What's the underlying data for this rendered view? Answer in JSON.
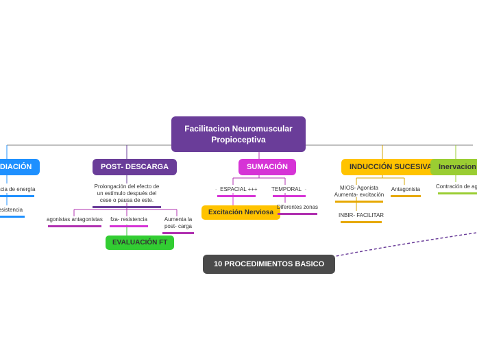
{
  "root": {
    "label": "Facilitacion Neuromuscular\nPropioceptiva",
    "bg": "#6a3d99",
    "fg": "#ffffff"
  },
  "branches": {
    "radiacion": {
      "label": "RADIACIÓN",
      "bg": "#1e90ff",
      "line": "#1e90ff"
    },
    "post": {
      "label": "POST- DESCARGA",
      "bg": "#6a3d99",
      "line": "#6a3d99"
    },
    "sumacion": {
      "label": "SUMACIÓN",
      "bg": "#d633d6",
      "line": "#b030b0"
    },
    "induccion": {
      "label": "INDUCCIÓN SUCESIVA",
      "bg": "#ffc300",
      "line": "#d4a500",
      "fg": "#333333"
    },
    "inervacion": {
      "label": "Inervacion Reci",
      "bg": "#9acd32",
      "line": "#9acd32",
      "fg": "#333333"
    }
  },
  "sub": {
    "rad_energia": {
      "text": "aferencia de energía",
      "uline": "#1e90ff"
    },
    "rad_resist": {
      "text": "resistencia",
      "uline": "#1e90ff"
    },
    "post_desc": {
      "text": "Prolongación del efecto de\nun estímulo después del\ncese o pausa de este.",
      "uline": "#6a3d99"
    },
    "post_agon": {
      "text": "agonistas antagonistas",
      "uline": "#b030b0"
    },
    "post_fza": {
      "text": "fza- resistencia",
      "uline": "#d633d6"
    },
    "post_aumenta": {
      "text": "Aumenta la\npost- carga",
      "uline": "#b030b0"
    },
    "sum_espacial": {
      "text": "ESPACIAL +++",
      "uline": "#d633d6"
    },
    "sum_temporal": {
      "text": "TEMPORAL",
      "uline": "#d633d6"
    },
    "sum_zonas": {
      "text": "Diferentes zonas",
      "uline": "#b030b0"
    },
    "ind_mios": {
      "text": "MIOS- Agonista\nAumenta- excitación",
      "uline": "#e6a800"
    },
    "ind_antag": {
      "text": "Antagonista",
      "uline": "#e6a800"
    },
    "ind_inbir": {
      "text": "INBIR- FACILITAR",
      "uline": "#e6a800"
    },
    "iner_contra": {
      "text": "Contración de ago",
      "uline": "#9acd32"
    }
  },
  "pills": {
    "excitacion": {
      "text": "Excitación Nerviosa",
      "bg": "#ffc300",
      "fg": "#333333"
    },
    "evaluacion": {
      "text": "EVALUACIÓN FT",
      "bg": "#32cd32",
      "fg": "#333333"
    }
  },
  "proc": {
    "text": "10 PROCEDIMIENTOS BASICO"
  },
  "connectors": {
    "main_stroke": "#808080",
    "dash_stroke": "#6a3d99",
    "green_stroke": "#9acd32"
  }
}
